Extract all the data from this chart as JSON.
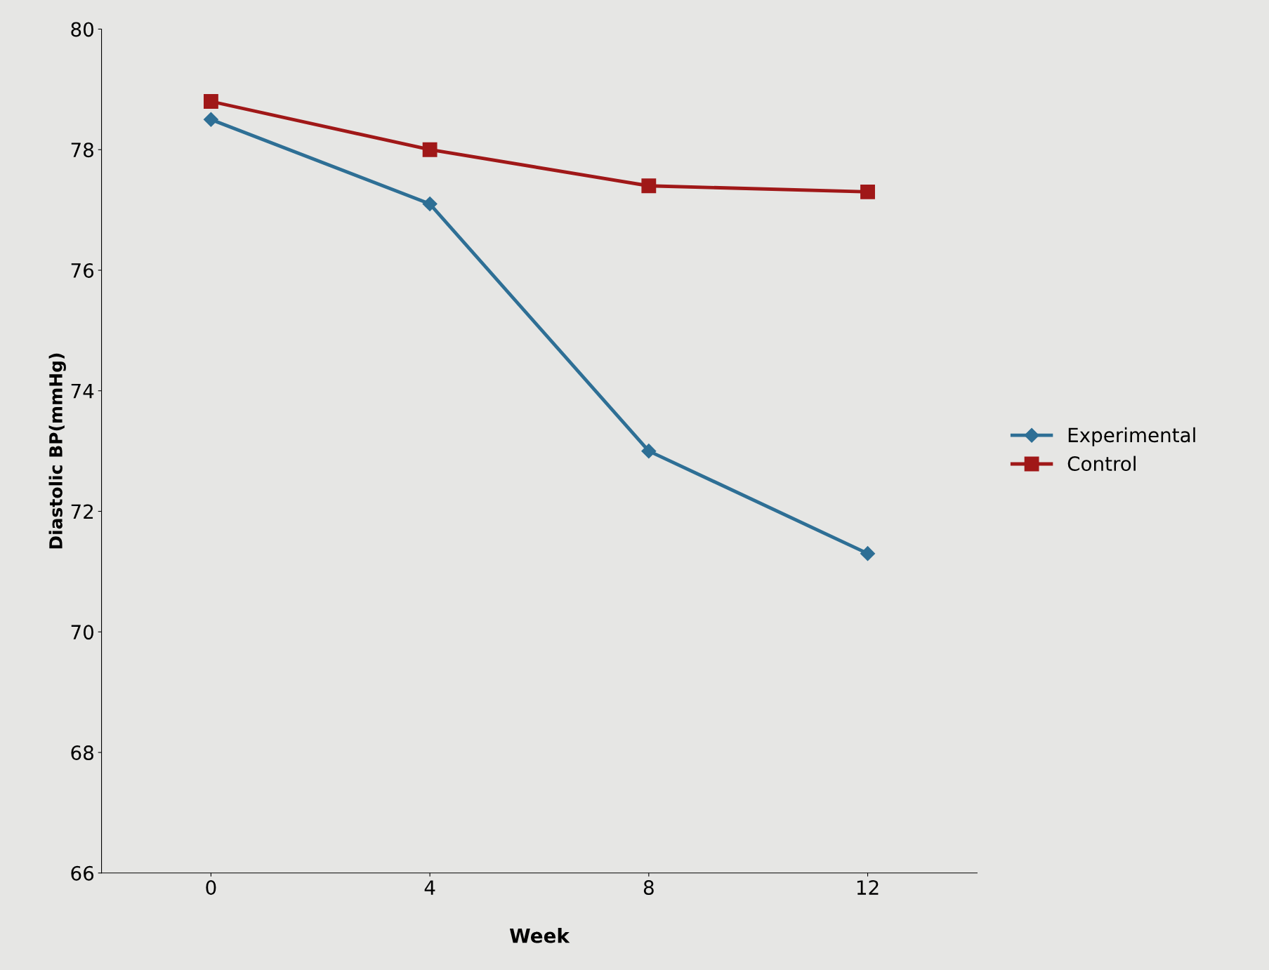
{
  "chart_data": {
    "type": "line",
    "xlabel": "Week",
    "ylabel": "Diastolic BP(mmHg)",
    "categories": [
      "0",
      "4",
      "8",
      "12"
    ],
    "series": [
      {
        "name": "Experimental",
        "color": "#2e6f95",
        "marker": "diamond",
        "values": [
          78.5,
          77.1,
          73.0,
          71.3
        ]
      },
      {
        "name": "Control",
        "color": "#a01818",
        "marker": "square",
        "values": [
          78.8,
          78.0,
          77.4,
          77.3
        ]
      }
    ],
    "ylim": [
      66,
      80
    ],
    "yticks": [
      66,
      68,
      70,
      72,
      74,
      76,
      78,
      80
    ],
    "grid": false,
    "legend": "right",
    "line_style": "solid"
  }
}
